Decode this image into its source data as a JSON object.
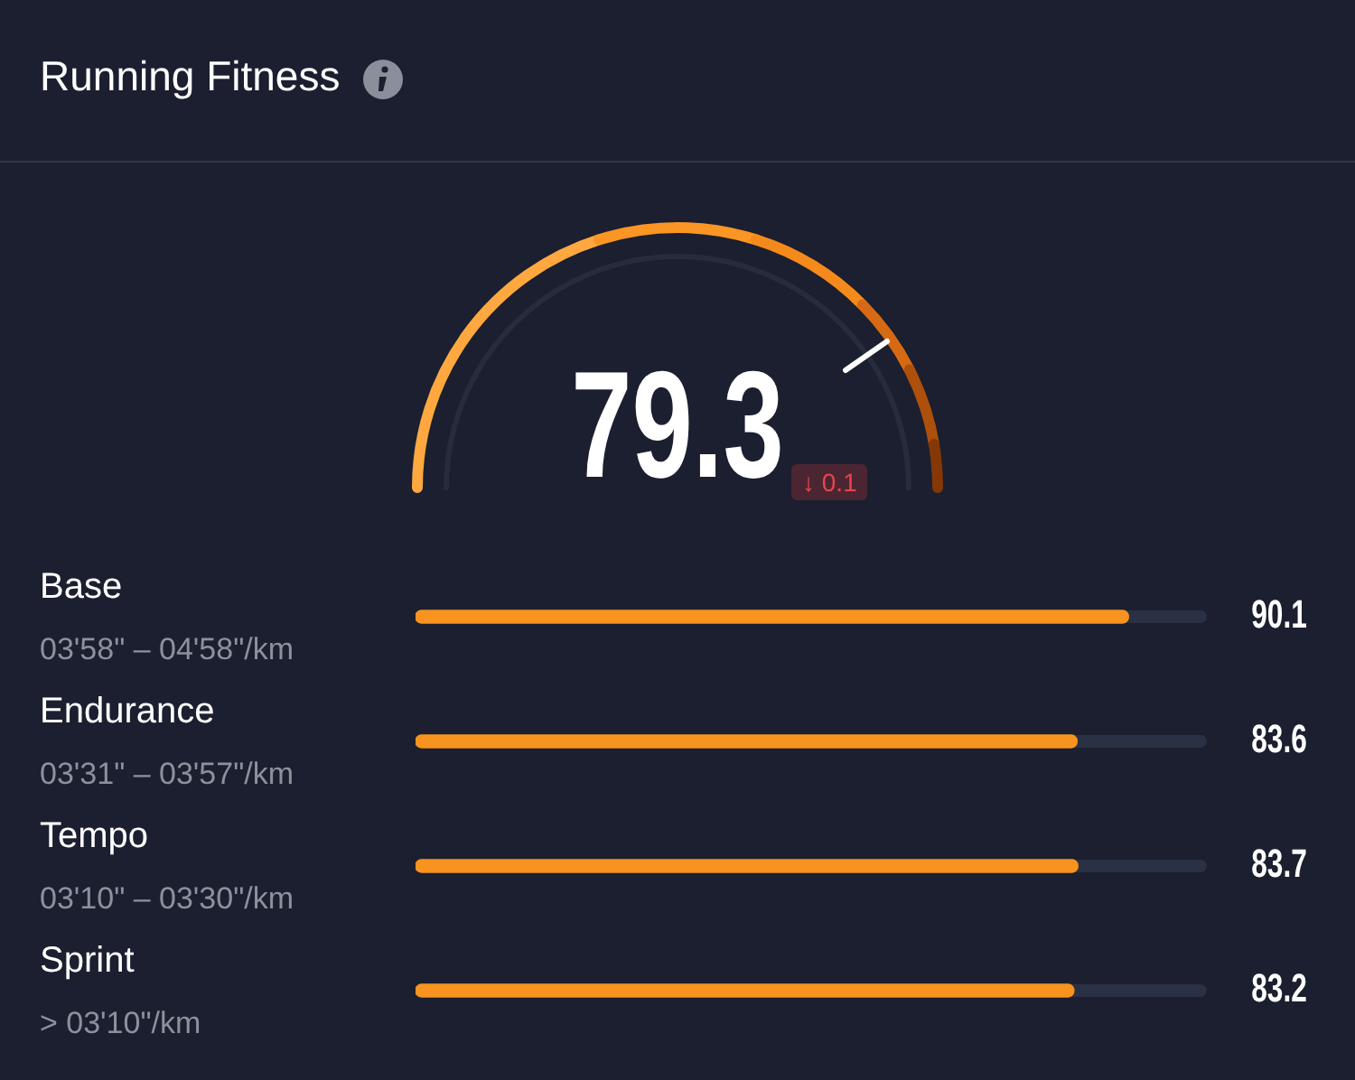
{
  "chart_data": [
    {
      "type": "other",
      "title": "Running Fitness",
      "annotations": [
        "79.3",
        "↓ 0.1"
      ]
    },
    {
      "type": "bar",
      "orientation": "horizontal",
      "categories": [
        "Base",
        "Endurance",
        "Tempo",
        "Sprint"
      ],
      "values": [
        90.1,
        83.6,
        83.7,
        83.2
      ],
      "color": "#f7931e",
      "xlim": [
        0,
        100
      ],
      "tick_labels": "y",
      "data_labels": true,
      "annotations": [
        "03'58\" – 04'58\"/km",
        "03'31\" – 03'57\"/km",
        "03'10\" – 03'30\"/km",
        "> 03'10\"/km"
      ]
    }
  ]
}
